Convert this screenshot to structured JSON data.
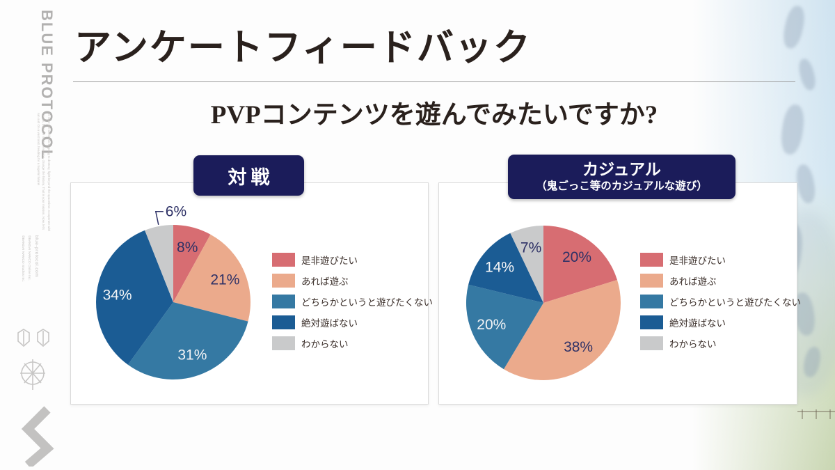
{
  "slide": {
    "title": "アンケートフィードバック",
    "question": "PVPコンテンツを遊んでみたいですか?"
  },
  "sidebar": {
    "logo_text": "BLUE PROTOCOL",
    "tagline": "To save the world that is going to destroy, fight beyond the spacetime. Cooperate with friends, beat the mighty enemies, change the history. That is your mission. Now, let's run out! On a vast land, heading for a hopeful future!",
    "url": "blue-protocol.com",
    "copyright_online": "©BANDAI NAMCO Online Inc.",
    "copyright_studios": "©BANDAI NAMCO Studios Inc."
  },
  "colors": {
    "badge_navy": "#1b1c5a",
    "label_navy": "#2e3166",
    "title_ink": "#2a211d",
    "legend_text": "#3b2f2a",
    "series": [
      "#d76d72",
      "#ebaa8c",
      "#3579a3",
      "#1b5c94",
      "#c9cacb"
    ]
  },
  "chart_data": [
    {
      "type": "pie",
      "title": "対戦",
      "subtitle": "",
      "labels": [
        "是非遊びたい",
        "あれば遊ぶ",
        "どちらかというと遊びたくない",
        "絶対遊ばない",
        "わからない"
      ],
      "values": [
        8,
        21,
        31,
        34,
        6
      ],
      "unit": "%",
      "colors": [
        "#d76d72",
        "#ebaa8c",
        "#3579a3",
        "#1b5c94",
        "#c9cacb"
      ],
      "start_angle_deg": 0,
      "direction": "clockwise",
      "outside_labels": [
        4
      ],
      "legend_position": "right"
    },
    {
      "type": "pie",
      "title": "カジュアル",
      "subtitle": "（鬼ごっこ等のカジュアルな遊び）",
      "labels": [
        "是非遊びたい",
        "あれば遊ぶ",
        "どちらかというと遊びたくない",
        "絶対遊ばない",
        "わからない"
      ],
      "values": [
        20,
        38,
        20,
        14,
        7
      ],
      "unit": "%",
      "colors": [
        "#d76d72",
        "#ebaa8c",
        "#3579a3",
        "#1b5c94",
        "#c9cacb"
      ],
      "start_angle_deg": 0,
      "direction": "clockwise",
      "outside_labels": [],
      "legend_position": "right"
    }
  ]
}
